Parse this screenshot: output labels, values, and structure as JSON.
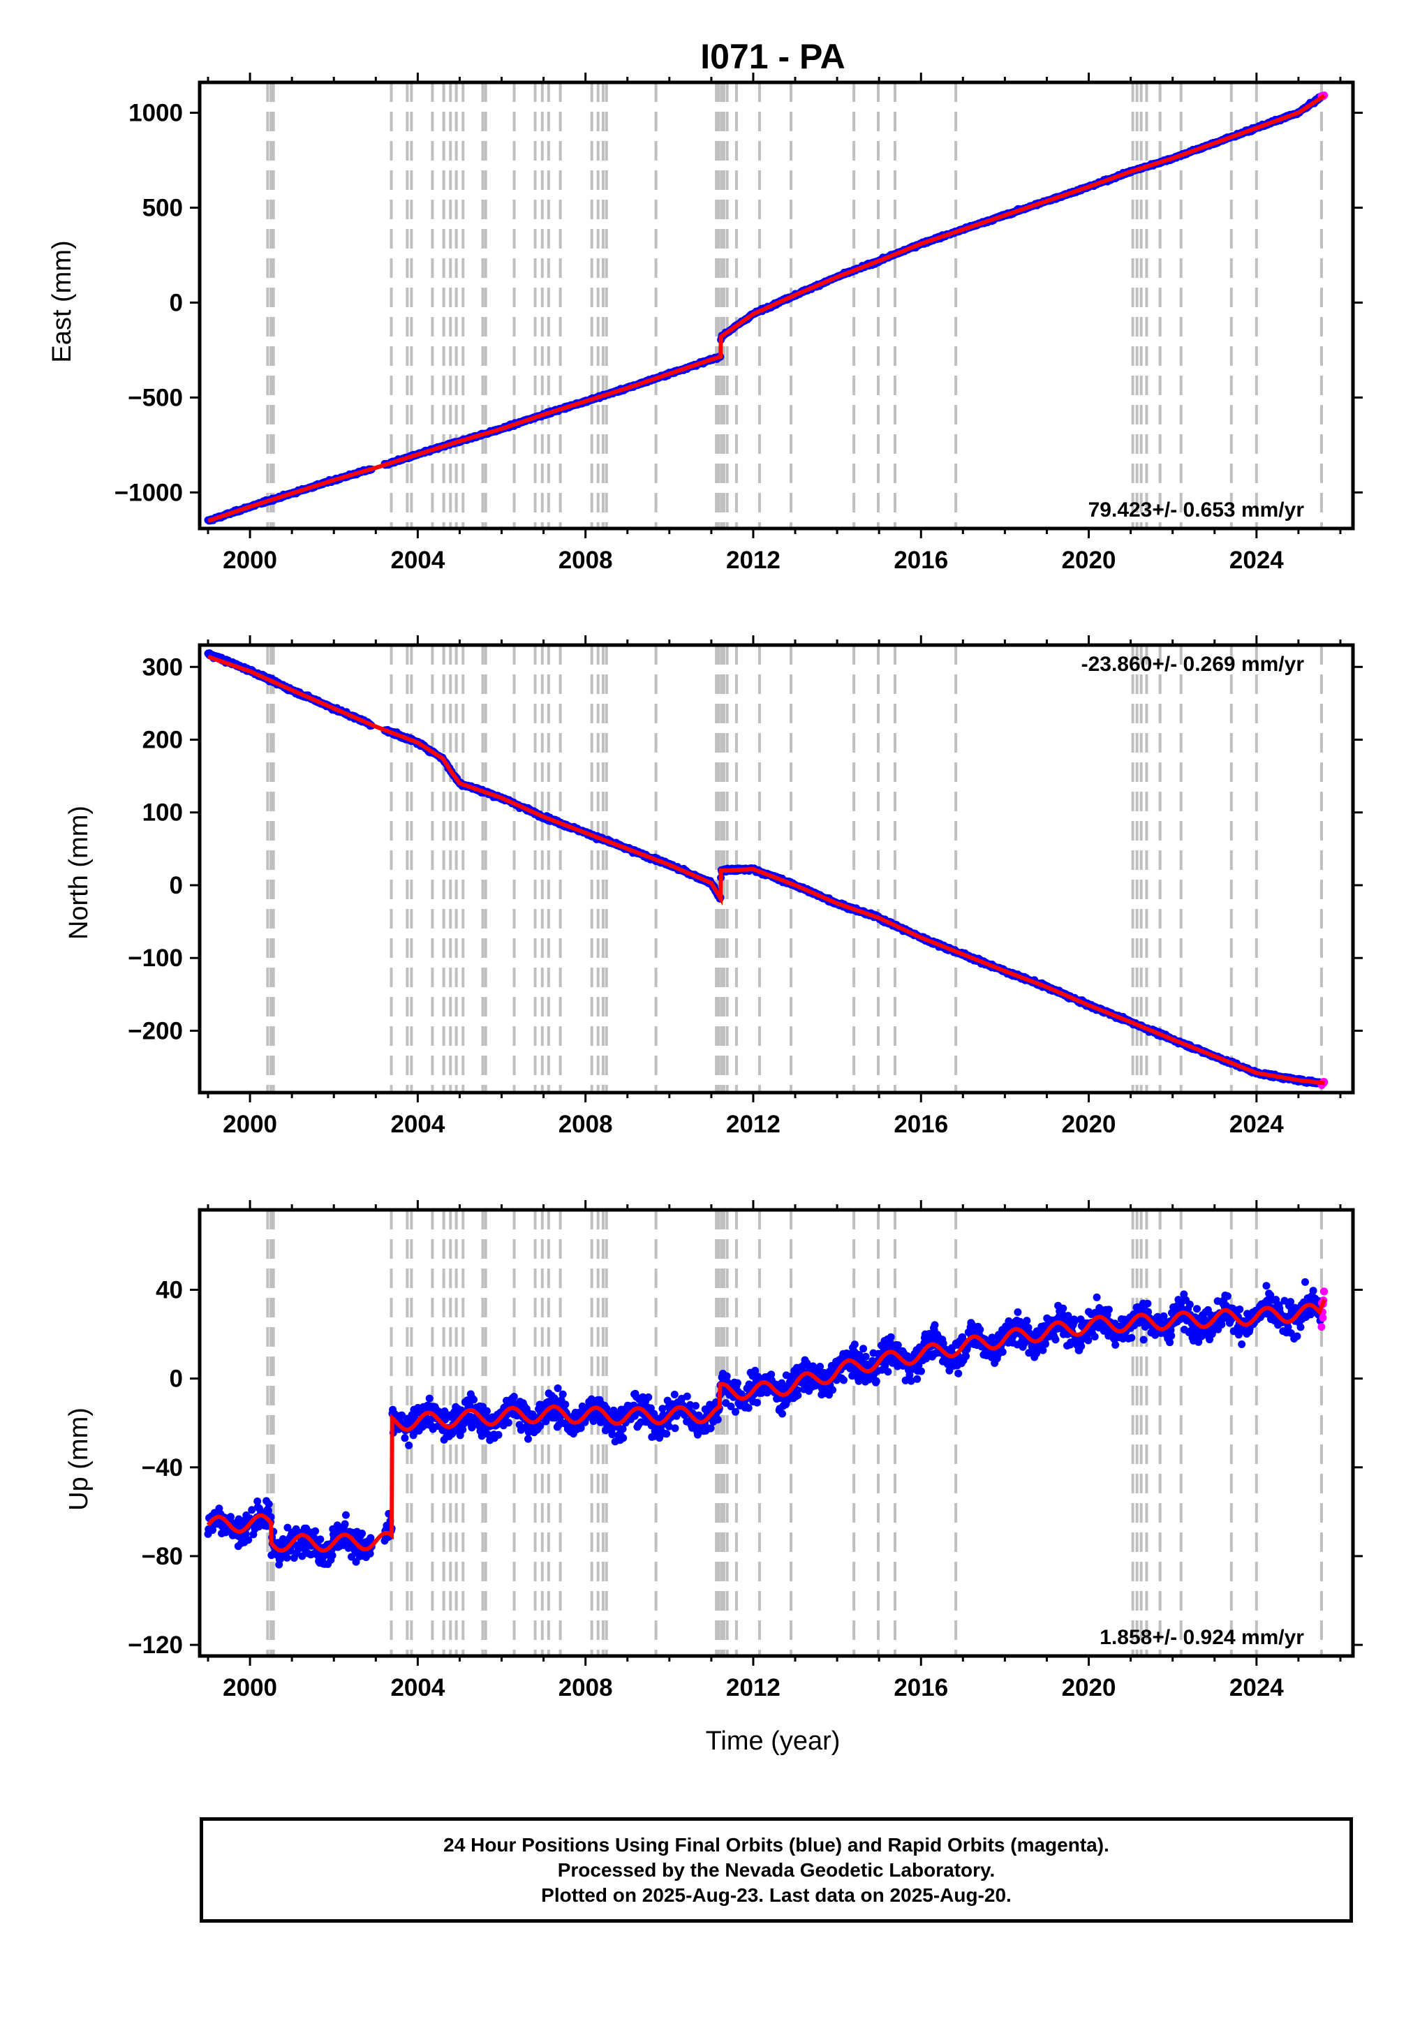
{
  "colors": {
    "final_points": "#0000ff",
    "rapid_points": "#ff00ff",
    "model_line": "#ff0000",
    "event_lines": "#bfbfbf",
    "frame": "#000000"
  },
  "chart_data": [
    {
      "type": "scatter",
      "panel": "east",
      "title": "I071 - PA",
      "ylabel": "East (mm)",
      "xlabel": "",
      "xlim": [
        1998.8,
        2026.3
      ],
      "ylim": [
        -1190,
        1160
      ],
      "x_ticks": [
        2000,
        2004,
        2008,
        2012,
        2016,
        2020,
        2024
      ],
      "y_ticks": [
        1000,
        500,
        0,
        -500,
        -1000
      ],
      "y_tick_labels": [
        "1000",
        "500",
        "0",
        "−500",
        "−1000"
      ],
      "rate_label": "79.423+/- 0.653 mm/yr",
      "rate_position": "bottom-right",
      "series": [
        {
          "kind": "final_orbits",
          "x": [
            1999.0,
            2000.0,
            2001.0,
            2002.0,
            2003.0,
            2004.0,
            2005.0,
            2006.0,
            2007.0,
            2008.0,
            2009.0,
            2010.0,
            2011.0,
            2011.22,
            2011.23,
            2012.0,
            2013.0,
            2014.0,
            2015.0,
            2016.0,
            2017.0,
            2018.0,
            2019.0,
            2020.0,
            2021.0,
            2022.0,
            2023.0,
            2024.0,
            2025.0,
            2025.55
          ],
          "y": [
            -1150,
            -1075,
            -1005,
            -935,
            -870,
            -800,
            -730,
            -665,
            -590,
            -520,
            -450,
            -375,
            -300,
            -285,
            -180,
            -60,
            40,
            135,
            220,
            310,
            385,
            460,
            535,
            610,
            690,
            760,
            840,
            920,
            1000,
            1085
          ],
          "scatter": 8
        },
        {
          "kind": "rapid_orbits",
          "x": [
            2025.55,
            2025.62
          ],
          "y": [
            1086,
            1092
          ],
          "scatter": 4
        },
        {
          "kind": "model",
          "x": [
            1999.0,
            2000.0,
            2001.0,
            2002.0,
            2003.0,
            2004.0,
            2005.0,
            2006.0,
            2007.0,
            2008.0,
            2009.0,
            2010.0,
            2011.0,
            2011.22,
            2011.23,
            2012.0,
            2013.0,
            2014.0,
            2015.0,
            2016.0,
            2017.0,
            2018.0,
            2019.0,
            2020.0,
            2021.0,
            2022.0,
            2023.0,
            2024.0,
            2025.0,
            2025.62
          ],
          "y": [
            -1150,
            -1075,
            -1005,
            -935,
            -870,
            -800,
            -730,
            -665,
            -590,
            -520,
            -450,
            -375,
            -300,
            -285,
            -180,
            -60,
            40,
            135,
            220,
            310,
            385,
            460,
            535,
            610,
            690,
            760,
            840,
            920,
            1000,
            1090
          ]
        }
      ]
    },
    {
      "type": "scatter",
      "panel": "north",
      "title": "",
      "ylabel": "North (mm)",
      "xlabel": "",
      "xlim": [
        1998.8,
        2026.3
      ],
      "ylim": [
        -285,
        330
      ],
      "x_ticks": [
        2000,
        2004,
        2008,
        2012,
        2016,
        2020,
        2024
      ],
      "y_ticks": [
        300,
        200,
        100,
        0,
        -100,
        -200
      ],
      "y_tick_labels": [
        "300",
        "200",
        "100",
        "0",
        "−100",
        "−200"
      ],
      "rate_label": "-23.860+/- 0.269 mm/yr",
      "rate_position": "top-right",
      "series": [
        {
          "kind": "final_orbits",
          "x": [
            1999.0,
            2000.0,
            2001.0,
            2002.0,
            2003.0,
            2004.0,
            2004.6,
            2004.8,
            2005.0,
            2006.0,
            2007.0,
            2008.0,
            2009.0,
            2010.0,
            2011.0,
            2011.22,
            2011.23,
            2012.0,
            2013.0,
            2014.0,
            2015.0,
            2016.0,
            2017.0,
            2018.0,
            2019.0,
            2020.0,
            2021.0,
            2022.0,
            2023.0,
            2024.0,
            2025.0,
            2025.55
          ],
          "y": [
            318,
            295,
            268,
            243,
            218,
            196,
            174,
            156,
            140,
            120,
            94,
            72,
            50,
            28,
            3,
            -20,
            20,
            22,
            0,
            -25,
            -45,
            -72,
            -95,
            -118,
            -140,
            -165,
            -188,
            -212,
            -235,
            -258,
            -268,
            -272
          ],
          "scatter": 3
        },
        {
          "kind": "rapid_orbits",
          "x": [
            2025.55,
            2025.62
          ],
          "y": [
            -274,
            -270
          ],
          "scatter": 2
        },
        {
          "kind": "model",
          "x": [
            1999.0,
            2000.0,
            2001.0,
            2002.0,
            2003.0,
            2004.0,
            2004.6,
            2004.8,
            2005.0,
            2006.0,
            2007.0,
            2008.0,
            2009.0,
            2010.0,
            2011.0,
            2011.22,
            2011.23,
            2012.0,
            2013.0,
            2014.0,
            2015.0,
            2016.0,
            2017.0,
            2018.0,
            2019.0,
            2020.0,
            2021.0,
            2022.0,
            2023.0,
            2024.0,
            2025.0,
            2025.62
          ],
          "y": [
            314,
            294,
            268,
            243,
            218,
            196,
            174,
            156,
            140,
            120,
            94,
            72,
            50,
            28,
            3,
            -18,
            20,
            22,
            0,
            -25,
            -45,
            -72,
            -95,
            -118,
            -140,
            -165,
            -188,
            -212,
            -235,
            -258,
            -268,
            -272
          ]
        }
      ]
    },
    {
      "type": "scatter",
      "panel": "up",
      "title": "",
      "ylabel": "Up (mm)",
      "xlabel": "Time (year)",
      "xlim": [
        1998.8,
        2026.3
      ],
      "ylim": [
        -125,
        76
      ],
      "x_ticks": [
        2000,
        2004,
        2008,
        2012,
        2016,
        2020,
        2024
      ],
      "y_ticks": [
        40,
        0,
        -40,
        -80,
        -120
      ],
      "y_tick_labels": [
        "40",
        "0",
        "−40",
        "−80",
        "−120"
      ],
      "rate_label": "1.858+/- 0.924 mm/yr",
      "rate_position": "bottom-right",
      "seasonal_amplitude": 3.5,
      "series": [
        {
          "kind": "final_orbits",
          "x": [
            1999.0,
            2000.5,
            2000.51,
            2002.0,
            2003.38,
            2003.39,
            2005.0,
            2007.0,
            2009.0,
            2011.2,
            2011.21,
            2012.5,
            2013.5,
            2014.5,
            2016.0,
            2018.0,
            2020.0,
            2022.0,
            2024.0,
            2025.55
          ],
          "y": [
            -66,
            -65,
            -74,
            -74,
            -73,
            -20,
            -18,
            -16,
            -17,
            -16,
            -6,
            -5,
            0,
            6,
            11,
            18,
            24,
            26,
            28,
            30
          ],
          "scatter": 9
        },
        {
          "kind": "rapid_orbits",
          "x": [
            2025.55,
            2025.62
          ],
          "y": [
            30,
            40
          ],
          "scatter": 14
        },
        {
          "kind": "model",
          "x": [
            1999.0,
            2000.5,
            2000.51,
            2002.0,
            2003.38,
            2003.39,
            2005.0,
            2007.0,
            2009.0,
            2011.2,
            2011.21,
            2012.5,
            2013.5,
            2014.5,
            2016.0,
            2018.0,
            2020.0,
            2022.0,
            2024.0,
            2025.5,
            2025.62
          ],
          "y": [
            -66,
            -65,
            -74,
            -74,
            -73,
            -20,
            -18,
            -16,
            -17,
            -16,
            -6,
            -5,
            0,
            6,
            11,
            18,
            24,
            26,
            28,
            30,
            38
          ]
        }
      ]
    }
  ],
  "event_lines": [
    2000.42,
    2000.5,
    2000.56,
    2003.37,
    2003.75,
    2003.85,
    2004.35,
    2004.62,
    2004.78,
    2004.92,
    2005.08,
    2005.55,
    2005.62,
    2006.3,
    2006.8,
    2006.97,
    2007.12,
    2007.4,
    2008.15,
    2008.3,
    2008.42,
    2008.5,
    2009.68,
    2011.12,
    2011.18,
    2011.25,
    2011.3,
    2011.38,
    2011.6,
    2012.15,
    2012.9,
    2014.4,
    2014.98,
    2015.38,
    2016.83,
    2021.05,
    2021.15,
    2021.25,
    2021.38,
    2021.7,
    2022.2,
    2023.4,
    2024.0,
    2025.55
  ],
  "footer": {
    "line1": "24 Hour Positions Using Final Orbits (blue) and Rapid Orbits (magenta).",
    "line2": "Processed by the Nevada Geodetic Laboratory.",
    "line3": "Plotted on 2025-Aug-23. Last data on 2025-Aug-20."
  }
}
